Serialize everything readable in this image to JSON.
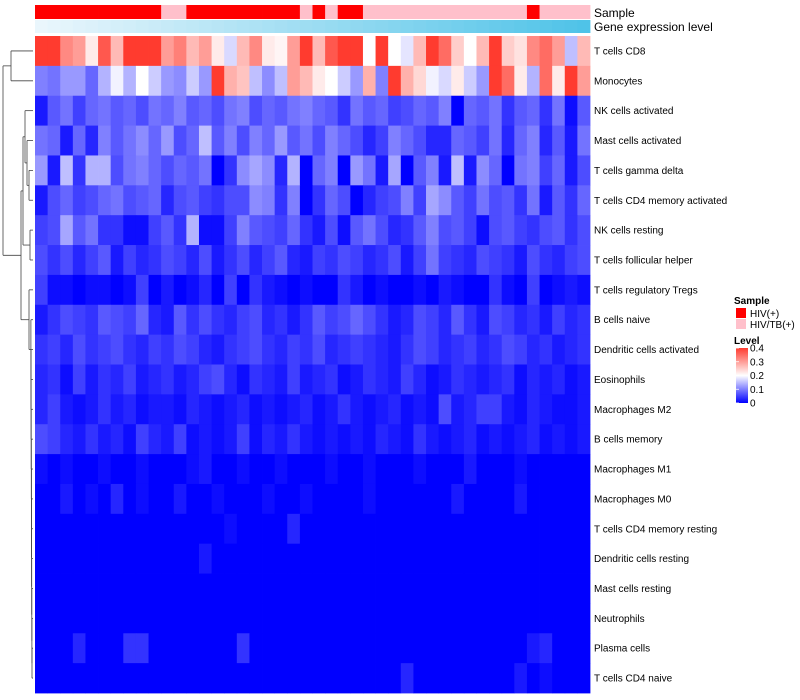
{
  "chart_data": {
    "type": "heatmap",
    "columns": 44,
    "rows": [
      "T cells CD8",
      "Monocytes",
      "NK cells activated",
      "Mast cells activated",
      "T cells gamma delta",
      "T cells CD4 memory activated",
      "NK cells resting",
      "T cells follicular helper",
      "T cells regulatory  Tregs",
      "B cells naive",
      "Dendritic cells activated",
      "Eosinophils",
      "Macrophages M2",
      "B cells memory",
      "Macrophages M1",
      "Macrophages M0",
      "T cells CD4 memory resting",
      "Dendritic cells resting",
      "Mast cells resting",
      "Neutrophils",
      "Plasma cells",
      "T cells CD4 naive"
    ],
    "row_means": [
      0.3,
      0.17,
      0.07,
      0.07,
      0.08,
      0.06,
      0.06,
      0.05,
      0.02,
      0.05,
      0.04,
      0.035,
      0.03,
      0.025,
      0.008,
      0.01,
      0.004,
      0.004,
      0.002,
      0.001,
      0.015,
      0.006
    ],
    "values": [
      [
        0.45,
        0.45,
        0.32,
        0.3,
        0.22,
        0.37,
        0.27,
        0.4,
        0.4,
        0.4,
        0.3,
        0.33,
        0.27,
        0.3,
        0.22,
        0.17,
        0.27,
        0.32,
        0.22,
        0.21,
        0.3,
        0.4,
        0.27,
        0.37,
        0.45,
        0.45,
        0.2,
        0.42,
        0.2,
        0.18,
        0.27,
        0.42,
        0.35,
        0.25,
        0.2,
        0.27,
        0.4,
        0.25,
        0.23,
        0.32,
        0.35,
        0.3,
        0.15,
        0.27
      ],
      [
        0.1,
        0.09,
        0.12,
        0.12,
        0.08,
        0.14,
        0.19,
        0.14,
        0.2,
        0.16,
        0.12,
        0.11,
        0.16,
        0.12,
        0.43,
        0.28,
        0.26,
        0.15,
        0.11,
        0.15,
        0.3,
        0.27,
        0.22,
        0.2,
        0.16,
        0.12,
        0.28,
        0.1,
        0.42,
        0.28,
        0.24,
        0.19,
        0.17,
        0.22,
        0.16,
        0.12,
        0.4,
        0.35,
        0.22,
        0.14,
        0.35,
        0.22,
        0.43,
        0.3
      ],
      [
        0.02,
        0.07,
        0.09,
        0.05,
        0.08,
        0.09,
        0.07,
        0.08,
        0.06,
        0.09,
        0.08,
        0.1,
        0.07,
        0.08,
        0.06,
        0.09,
        0.1,
        0.06,
        0.08,
        0.07,
        0.09,
        0.1,
        0.08,
        0.07,
        0.04,
        0.09,
        0.07,
        0.08,
        0.05,
        0.06,
        0.08,
        0.07,
        0.1,
        0.0,
        0.08,
        0.07,
        0.09,
        0.04,
        0.07,
        0.08,
        0.04,
        0.09,
        0.01,
        0.07
      ],
      [
        0.09,
        0.08,
        0.02,
        0.08,
        0.03,
        0.1,
        0.07,
        0.09,
        0.11,
        0.08,
        0.12,
        0.06,
        0.08,
        0.15,
        0.07,
        0.1,
        0.06,
        0.1,
        0.08,
        0.12,
        0.07,
        0.09,
        0.06,
        0.1,
        0.08,
        0.06,
        0.03,
        0.05,
        0.1,
        0.08,
        0.06,
        0.03,
        0.03,
        0.08,
        0.07,
        0.05,
        0.09,
        0.03,
        0.08,
        0.1,
        0.03,
        0.07,
        0.02,
        0.09
      ],
      [
        0.12,
        0.02,
        0.15,
        0.04,
        0.14,
        0.14,
        0.06,
        0.09,
        0.1,
        0.08,
        0.06,
        0.08,
        0.07,
        0.09,
        0.0,
        0.04,
        0.11,
        0.13,
        0.11,
        0.03,
        0.14,
        0.0,
        0.08,
        0.1,
        0.0,
        0.12,
        0.09,
        0.02,
        0.13,
        0.0,
        0.07,
        0.1,
        0.02,
        0.15,
        0.02,
        0.11,
        0.08,
        0.0,
        0.09,
        0.1,
        0.05,
        0.08,
        0.02,
        0.06
      ],
      [
        0.02,
        0.06,
        0.08,
        0.05,
        0.06,
        0.08,
        0.09,
        0.06,
        0.07,
        0.08,
        0.03,
        0.06,
        0.07,
        0.05,
        0.04,
        0.06,
        0.06,
        0.11,
        0.1,
        0.04,
        0.1,
        0.0,
        0.04,
        0.08,
        0.06,
        0.0,
        0.03,
        0.05,
        0.06,
        0.1,
        0.05,
        0.13,
        0.11,
        0.07,
        0.05,
        0.09,
        0.06,
        0.07,
        0.04,
        0.09,
        0.02,
        0.07,
        0.04,
        0.08
      ],
      [
        0.05,
        0.06,
        0.13,
        0.07,
        0.09,
        0.04,
        0.04,
        0.01,
        0.01,
        0.05,
        0.07,
        0.04,
        0.14,
        0.01,
        0.01,
        0.05,
        0.1,
        0.07,
        0.06,
        0.05,
        0.08,
        0.04,
        0.02,
        0.06,
        0.01,
        0.07,
        0.09,
        0.06,
        0.03,
        0.04,
        0.07,
        0.1,
        0.06,
        0.07,
        0.05,
        0.01,
        0.06,
        0.07,
        0.05,
        0.04,
        0.06,
        0.07,
        0.04,
        0.06
      ],
      [
        0.06,
        0.04,
        0.06,
        0.03,
        0.05,
        0.07,
        0.02,
        0.05,
        0.03,
        0.04,
        0.06,
        0.05,
        0.03,
        0.06,
        0.02,
        0.04,
        0.06,
        0.03,
        0.05,
        0.07,
        0.03,
        0.02,
        0.05,
        0.04,
        0.06,
        0.05,
        0.03,
        0.04,
        0.06,
        0.02,
        0.05,
        0.09,
        0.05,
        0.04,
        0.03,
        0.06,
        0.05,
        0.04,
        0.02,
        0.06,
        0.04,
        0.03,
        0.05,
        0.06
      ],
      [
        0.05,
        0.01,
        0.01,
        0.0,
        0.01,
        0.01,
        0.0,
        0.01,
        0.05,
        0.0,
        0.02,
        0.0,
        0.01,
        0.03,
        0.0,
        0.05,
        0.0,
        0.04,
        0.02,
        0.01,
        0.0,
        0.01,
        0.0,
        0.0,
        0.04,
        0.02,
        0.0,
        0.01,
        0.0,
        0.0,
        0.01,
        0.0,
        0.02,
        0.01,
        0.0,
        0.0,
        0.04,
        0.01,
        0.0,
        0.05,
        0.0,
        0.01,
        0.02,
        0.01
      ],
      [
        0.02,
        0.04,
        0.06,
        0.05,
        0.04,
        0.07,
        0.06,
        0.05,
        0.08,
        0.03,
        0.02,
        0.07,
        0.04,
        0.06,
        0.04,
        0.03,
        0.05,
        0.06,
        0.03,
        0.04,
        0.02,
        0.04,
        0.07,
        0.05,
        0.06,
        0.08,
        0.06,
        0.04,
        0.02,
        0.03,
        0.06,
        0.05,
        0.03,
        0.07,
        0.04,
        0.02,
        0.06,
        0.05,
        0.03,
        0.04,
        0.02,
        0.05,
        0.03,
        0.04
      ],
      [
        0.04,
        0.05,
        0.03,
        0.06,
        0.04,
        0.05,
        0.06,
        0.04,
        0.03,
        0.05,
        0.04,
        0.06,
        0.05,
        0.03,
        0.02,
        0.04,
        0.05,
        0.06,
        0.04,
        0.03,
        0.05,
        0.04,
        0.06,
        0.03,
        0.04,
        0.05,
        0.04,
        0.03,
        0.02,
        0.04,
        0.06,
        0.05,
        0.03,
        0.04,
        0.05,
        0.03,
        0.04,
        0.06,
        0.05,
        0.03,
        0.04,
        0.02,
        0.03,
        0.04
      ],
      [
        0.03,
        0.04,
        0.01,
        0.05,
        0.02,
        0.04,
        0.03,
        0.05,
        0.02,
        0.03,
        0.04,
        0.02,
        0.03,
        0.05,
        0.06,
        0.03,
        0.01,
        0.04,
        0.03,
        0.02,
        0.05,
        0.02,
        0.03,
        0.04,
        0.01,
        0.02,
        0.04,
        0.03,
        0.02,
        0.05,
        0.03,
        0.01,
        0.02,
        0.04,
        0.03,
        0.02,
        0.03,
        0.04,
        0.01,
        0.03,
        0.02,
        0.03,
        0.01,
        0.02
      ],
      [
        0.03,
        0.05,
        0.02,
        0.01,
        0.02,
        0.04,
        0.02,
        0.03,
        0.01,
        0.02,
        0.02,
        0.01,
        0.03,
        0.02,
        0.01,
        0.02,
        0.03,
        0.01,
        0.02,
        0.01,
        0.02,
        0.03,
        0.01,
        0.02,
        0.04,
        0.02,
        0.01,
        0.02,
        0.03,
        0.01,
        0.02,
        0.01,
        0.06,
        0.02,
        0.03,
        0.05,
        0.05,
        0.02,
        0.01,
        0.03,
        0.02,
        0.01,
        0.01,
        0.02
      ],
      [
        0.06,
        0.05,
        0.03,
        0.02,
        0.04,
        0.02,
        0.03,
        0.01,
        0.05,
        0.03,
        0.02,
        0.05,
        0.01,
        0.02,
        0.01,
        0.02,
        0.05,
        0.01,
        0.03,
        0.02,
        0.04,
        0.02,
        0.01,
        0.02,
        0.01,
        0.02,
        0.01,
        0.03,
        0.02,
        0.01,
        0.04,
        0.02,
        0.01,
        0.02,
        0.03,
        0.01,
        0.02,
        0.01,
        0.02,
        0.03,
        0.01,
        0.02,
        0.01,
        0.02
      ],
      [
        0.01,
        0.0,
        0.01,
        0.0,
        0.0,
        0.01,
        0.0,
        0.0,
        0.01,
        0.0,
        0.0,
        0.0,
        0.01,
        0.02,
        0.0,
        0.0,
        0.01,
        0.0,
        0.0,
        0.01,
        0.0,
        0.0,
        0.0,
        0.01,
        0.0,
        0.0,
        0.01,
        0.0,
        0.0,
        0.0,
        0.01,
        0.0,
        0.0,
        0.0,
        0.02,
        0.0,
        0.0,
        0.0,
        0.01,
        0.0,
        0.0,
        0.0,
        0.0,
        0.0
      ],
      [
        0.0,
        0.0,
        0.02,
        0.0,
        0.01,
        0.0,
        0.03,
        0.0,
        0.01,
        0.0,
        0.0,
        0.02,
        0.0,
        0.0,
        0.01,
        0.0,
        0.0,
        0.0,
        0.01,
        0.0,
        0.0,
        0.01,
        0.0,
        0.0,
        0.0,
        0.0,
        0.01,
        0.0,
        0.0,
        0.0,
        0.0,
        0.0,
        0.0,
        0.02,
        0.0,
        0.0,
        0.0,
        0.0,
        0.02,
        0.0,
        0.0,
        0.0,
        0.0,
        0.0
      ],
      [
        0.0,
        0.0,
        0.0,
        0.0,
        0.0,
        0.0,
        0.0,
        0.0,
        0.0,
        0.0,
        0.0,
        0.0,
        0.0,
        0.0,
        0.0,
        0.01,
        0.0,
        0.0,
        0.0,
        0.0,
        0.03,
        0.0,
        0.0,
        0.0,
        0.0,
        0.0,
        0.0,
        0.0,
        0.0,
        0.0,
        0.0,
        0.0,
        0.0,
        0.0,
        0.0,
        0.0,
        0.0,
        0.0,
        0.0,
        0.0,
        0.0,
        0.0,
        0.0,
        0.0
      ],
      [
        0.0,
        0.0,
        0.0,
        0.0,
        0.0,
        0.0,
        0.0,
        0.0,
        0.0,
        0.0,
        0.0,
        0.0,
        0.0,
        0.02,
        0.0,
        0.0,
        0.0,
        0.0,
        0.0,
        0.0,
        0.0,
        0.0,
        0.0,
        0.0,
        0.0,
        0.0,
        0.0,
        0.0,
        0.0,
        0.0,
        0.0,
        0.0,
        0.0,
        0.0,
        0.0,
        0.0,
        0.0,
        0.0,
        0.0,
        0.0,
        0.0,
        0.0,
        0.0,
        0.0
      ],
      [
        0.0,
        0.0,
        0.0,
        0.0,
        0.0,
        0.0,
        0.0,
        0.0,
        0.0,
        0.0,
        0.0,
        0.0,
        0.0,
        0.0,
        0.0,
        0.0,
        0.0,
        0.0,
        0.0,
        0.0,
        0.0,
        0.0,
        0.0,
        0.0,
        0.0,
        0.0,
        0.0,
        0.0,
        0.0,
        0.0,
        0.0,
        0.0,
        0.0,
        0.0,
        0.0,
        0.0,
        0.0,
        0.0,
        0.0,
        0.0,
        0.0,
        0.0,
        0.0,
        0.0
      ],
      [
        0.0,
        0.0,
        0.0,
        0.0,
        0.0,
        0.0,
        0.0,
        0.0,
        0.0,
        0.0,
        0.0,
        0.0,
        0.0,
        0.0,
        0.0,
        0.0,
        0.0,
        0.0,
        0.0,
        0.0,
        0.0,
        0.0,
        0.0,
        0.0,
        0.0,
        0.0,
        0.0,
        0.0,
        0.0,
        0.0,
        0.0,
        0.0,
        0.0,
        0.0,
        0.0,
        0.0,
        0.0,
        0.0,
        0.0,
        0.0,
        0.0,
        0.0,
        0.0,
        0.0
      ],
      [
        0.0,
        0.0,
        0.0,
        0.03,
        0.0,
        0.0,
        0.0,
        0.04,
        0.04,
        0.0,
        0.0,
        0.0,
        0.0,
        0.0,
        0.0,
        0.0,
        0.04,
        0.0,
        0.0,
        0.0,
        0.0,
        0.0,
        0.0,
        0.0,
        0.0,
        0.0,
        0.0,
        0.0,
        0.0,
        0.0,
        0.0,
        0.0,
        0.0,
        0.0,
        0.0,
        0.0,
        0.0,
        0.0,
        0.0,
        0.02,
        0.03,
        0.0,
        0.0,
        0.0
      ],
      [
        0.0,
        0.0,
        0.0,
        0.0,
        0.0,
        0.0,
        0.0,
        0.0,
        0.0,
        0.0,
        0.0,
        0.0,
        0.0,
        0.0,
        0.0,
        0.0,
        0.0,
        0.0,
        0.0,
        0.0,
        0.0,
        0.0,
        0.0,
        0.0,
        0.0,
        0.0,
        0.0,
        0.0,
        0.0,
        0.03,
        0.0,
        0.0,
        0.0,
        0.0,
        0.0,
        0.0,
        0.0,
        0.0,
        0.02,
        0.0,
        0.01,
        0.0,
        0.0,
        0.0
      ]
    ],
    "sample": [
      "HIV(+)",
      "HIV(+)",
      "HIV(+)",
      "HIV(+)",
      "HIV(+)",
      "HIV(+)",
      "HIV(+)",
      "HIV(+)",
      "HIV(+)",
      "HIV(+)",
      "HIV/TB(+)",
      "HIV/TB(+)",
      "HIV(+)",
      "HIV(+)",
      "HIV(+)",
      "HIV(+)",
      "HIV(+)",
      "HIV(+)",
      "HIV(+)",
      "HIV(+)",
      "HIV(+)",
      "HIV/TB(+)",
      "HIV(+)",
      "HIV/TB(+)",
      "HIV(+)",
      "HIV(+)",
      "HIV/TB(+)",
      "HIV/TB(+)",
      "HIV/TB(+)",
      "HIV/TB(+)",
      "HIV/TB(+)",
      "HIV/TB(+)",
      "HIV/TB(+)",
      "HIV/TB(+)",
      "HIV/TB(+)",
      "HIV/TB(+)",
      "HIV/TB(+)",
      "HIV/TB(+)",
      "HIV/TB(+)",
      "HIV(+)",
      "HIV/TB(+)",
      "HIV/TB(+)",
      "HIV/TB(+)",
      "HIV/TB(+)"
    ],
    "expression_range": [
      0,
      1
    ],
    "annotation_labels": {
      "sample": "Sample",
      "expression": "Gene expression level"
    },
    "legend": {
      "sample_title": "Sample",
      "sample_entries": [
        {
          "label": "HIV(+)",
          "color": "#ff0000"
        },
        {
          "label": "HIV/TB(+)",
          "color": "#ffc0cb"
        }
      ],
      "level_title": "Level",
      "level_ticks": [
        "0.4",
        "0.3",
        "0.2",
        "0.1",
        "0"
      ],
      "level_tick_values": [
        0.4,
        0.3,
        0.2,
        0.1,
        0.0
      ]
    },
    "color_scale": {
      "low": "#0000ff",
      "mid": "#ffffff",
      "high": "#ff3b2f",
      "min": 0,
      "max": 0.4
    },
    "expression_colors": {
      "low": "#eaf6fc",
      "high": "#4fc3e8"
    }
  }
}
